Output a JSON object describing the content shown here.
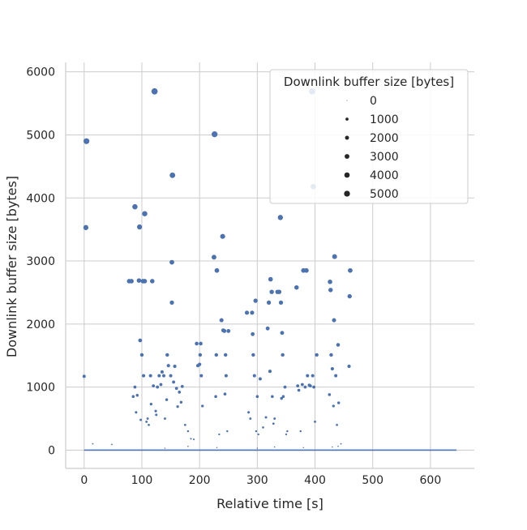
{
  "chart_data": {
    "type": "scatter",
    "title": "",
    "xlabel": "Relative time [s]",
    "ylabel": "Downlink buffer size [bytes]",
    "xlim": [
      -32,
      676
    ],
    "ylim": [
      -290,
      6150
    ],
    "xticks": [
      0,
      100,
      200,
      300,
      400,
      500,
      600
    ],
    "yticks": [
      0,
      1000,
      2000,
      3000,
      4000,
      5000,
      6000
    ],
    "grid": true,
    "legend": {
      "title": "Downlink buffer size [bytes]",
      "placement": "top-right",
      "entries": [
        "0",
        "1000",
        "2000",
        "3000",
        "4000",
        "5000"
      ],
      "entry_values": [
        0,
        1000,
        2000,
        3000,
        4000,
        5000
      ]
    },
    "colors": {
      "marker": "#4c72b0",
      "grid": "#cccccc",
      "axis": "#cccccc",
      "background": "#ffffff"
    },
    "baseline_segment": {
      "x": [
        0,
        645
      ],
      "y": 0
    },
    "points": [
      [
        0,
        1170
      ],
      [
        3,
        3530
      ],
      [
        4,
        4900
      ],
      [
        15,
        100
      ],
      [
        48,
        90
      ],
      [
        78,
        2680
      ],
      [
        82,
        2680
      ],
      [
        85,
        850
      ],
      [
        88,
        1000
      ],
      [
        88,
        3860
      ],
      [
        90,
        600
      ],
      [
        92,
        870
      ],
      [
        95,
        2690
      ],
      [
        96,
        3540
      ],
      [
        97,
        1740
      ],
      [
        98,
        480
      ],
      [
        100,
        1510
      ],
      [
        102,
        2680
      ],
      [
        103,
        1180
      ],
      [
        105,
        3750
      ],
      [
        105,
        2680
      ],
      [
        108,
        450
      ],
      [
        110,
        500
      ],
      [
        112,
        400
      ],
      [
        115,
        1180
      ],
      [
        116,
        730
      ],
      [
        118,
        2680
      ],
      [
        120,
        1020
      ],
      [
        122,
        5690
      ],
      [
        124,
        620
      ],
      [
        125,
        560
      ],
      [
        127,
        1000
      ],
      [
        130,
        1180
      ],
      [
        133,
        1040
      ],
      [
        135,
        1240
      ],
      [
        138,
        1180
      ],
      [
        140,
        500
      ],
      [
        143,
        800
      ],
      [
        144,
        1510
      ],
      [
        146,
        1340
      ],
      [
        150,
        1180
      ],
      [
        152,
        2340
      ],
      [
        152,
        2980
      ],
      [
        153,
        4360
      ],
      [
        155,
        1080
      ],
      [
        157,
        1330
      ],
      [
        160,
        980
      ],
      [
        162,
        690
      ],
      [
        165,
        920
      ],
      [
        168,
        760
      ],
      [
        170,
        1010
      ],
      [
        175,
        400
      ],
      [
        180,
        300
      ],
      [
        185,
        180
      ],
      [
        190,
        170
      ],
      [
        195,
        1690
      ],
      [
        197,
        1340
      ],
      [
        200,
        1360
      ],
      [
        201,
        1510
      ],
      [
        202,
        1690
      ],
      [
        203,
        1180
      ],
      [
        205,
        700
      ],
      [
        225,
        3060
      ],
      [
        226,
        5010
      ],
      [
        228,
        850
      ],
      [
        229,
        1510
      ],
      [
        230,
        2850
      ],
      [
        234,
        250
      ],
      [
        238,
        2060
      ],
      [
        240,
        3390
      ],
      [
        241,
        1900
      ],
      [
        243,
        1890
      ],
      [
        244,
        890
      ],
      [
        245,
        1510
      ],
      [
        246,
        1180
      ],
      [
        248,
        300
      ],
      [
        250,
        1890
      ],
      [
        282,
        2180
      ],
      [
        285,
        600
      ],
      [
        288,
        500
      ],
      [
        291,
        2180
      ],
      [
        292,
        1840
      ],
      [
        293,
        1510
      ],
      [
        295,
        1180
      ],
      [
        297,
        2370
      ],
      [
        298,
        300
      ],
      [
        300,
        850
      ],
      [
        302,
        250
      ],
      [
        305,
        1130
      ],
      [
        310,
        360
      ],
      [
        315,
        520
      ],
      [
        318,
        1930
      ],
      [
        320,
        2340
      ],
      [
        322,
        1250
      ],
      [
        323,
        2710
      ],
      [
        325,
        2510
      ],
      [
        326,
        850
      ],
      [
        328,
        420
      ],
      [
        330,
        500
      ],
      [
        335,
        2510
      ],
      [
        338,
        2510
      ],
      [
        340,
        3690
      ],
      [
        341,
        2340
      ],
      [
        342,
        820
      ],
      [
        343,
        1860
      ],
      [
        344,
        1510
      ],
      [
        345,
        850
      ],
      [
        348,
        1000
      ],
      [
        350,
        250
      ],
      [
        352,
        300
      ],
      [
        368,
        2580
      ],
      [
        370,
        1020
      ],
      [
        372,
        950
      ],
      [
        375,
        300
      ],
      [
        378,
        1040
      ],
      [
        380,
        2850
      ],
      [
        383,
        1000
      ],
      [
        385,
        2850
      ],
      [
        387,
        1180
      ],
      [
        390,
        1030
      ],
      [
        392,
        1020
      ],
      [
        395,
        5690
      ],
      [
        396,
        1180
      ],
      [
        397,
        4180
      ],
      [
        398,
        1000
      ],
      [
        400,
        450
      ],
      [
        403,
        1510
      ],
      [
        425,
        880
      ],
      [
        426,
        2670
      ],
      [
        427,
        2540
      ],
      [
        428,
        1510
      ],
      [
        430,
        1290
      ],
      [
        432,
        700
      ],
      [
        433,
        2060
      ],
      [
        434,
        3070
      ],
      [
        436,
        1180
      ],
      [
        438,
        400
      ],
      [
        440,
        1670
      ],
      [
        441,
        750
      ],
      [
        445,
        100
      ],
      [
        459,
        1330
      ],
      [
        460,
        2440
      ],
      [
        461,
        2850
      ],
      [
        140,
        30
      ],
      [
        180,
        60
      ],
      [
        230,
        40
      ],
      [
        300,
        30
      ],
      [
        330,
        50
      ],
      [
        380,
        40
      ],
      [
        430,
        50
      ],
      [
        440,
        60
      ]
    ]
  }
}
